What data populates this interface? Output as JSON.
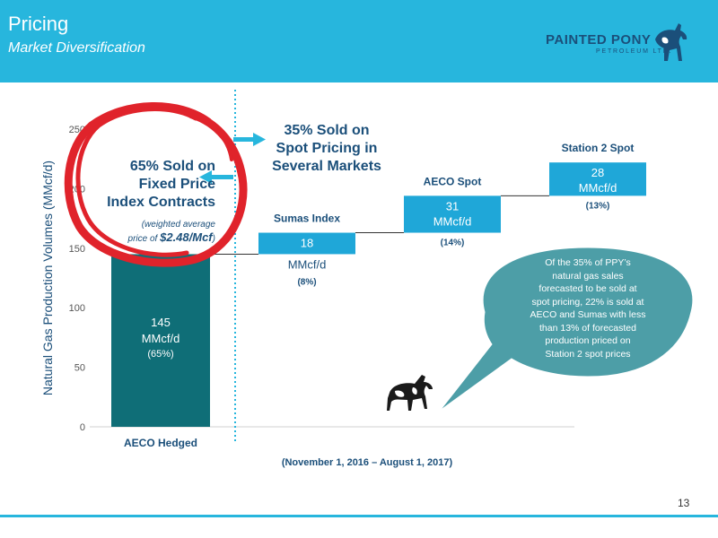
{
  "header": {
    "title": "Pricing",
    "subtitle": "Market Diversification",
    "logo_name": "PAINTED PONY",
    "logo_sub": "PETROLEUM LTD."
  },
  "page_number": "13",
  "annotations": {
    "fixed_line1": "65% Sold on",
    "fixed_line2": "Fixed Price",
    "fixed_line3": "Index Contracts",
    "fixed_note1": "(weighted average",
    "fixed_note2_prefix": "price of ",
    "fixed_note2_price": "$2.48/Mcf",
    "fixed_note2_suffix": ")",
    "spot_line1": "35% Sold on",
    "spot_line2": "Spot Pricing in",
    "spot_line3": "Several Markets",
    "callout": "Of the 35% of PPY’s natural gas sales forecasted to be sold at spot pricing, 22% is sold at AECO and Sumas with less than 13% of forecasted production  priced on Station 2 spot prices"
  },
  "colors": {
    "header": "#27b6dd",
    "hedged_bar": "#0f6e77",
    "spot_bar": "#1fa7d8",
    "callout": "#4d9ea7",
    "circle": "#e0232b",
    "dark_text": "#1b4f7a"
  },
  "chart_data": {
    "type": "bar",
    "subtype": "waterfall",
    "ylabel": "Natural Gas Production Volumes (MMcf/d)",
    "xlabel": "(November 1, 2016 – August 1, 2017)",
    "ylim": [
      0,
      250
    ],
    "yticks": [
      "0",
      "50",
      "100",
      "150",
      "200",
      "250"
    ],
    "grid": false,
    "series": [
      {
        "category": "AECO Hedged",
        "name_label": "",
        "value": 145,
        "base": 0,
        "value_label": "145",
        "unit_label": "MMcf/d",
        "pct_label": "(65%)"
      },
      {
        "category": "",
        "name_label": "Sumas Index",
        "value": 18,
        "base": 145,
        "value_label": "18",
        "unit_label": "MMcf/d",
        "pct_label": "(8%)"
      },
      {
        "category": "",
        "name_label": "AECO Spot",
        "value": 31,
        "base": 163,
        "value_label": "31",
        "unit_label": "MMcf/d",
        "pct_label": "(14%)"
      },
      {
        "category": "",
        "name_label": "Station 2 Spot",
        "value": 28,
        "base": 194,
        "value_label": "28",
        "unit_label": "MMcf/d",
        "pct_label": "(13%)"
      }
    ]
  }
}
